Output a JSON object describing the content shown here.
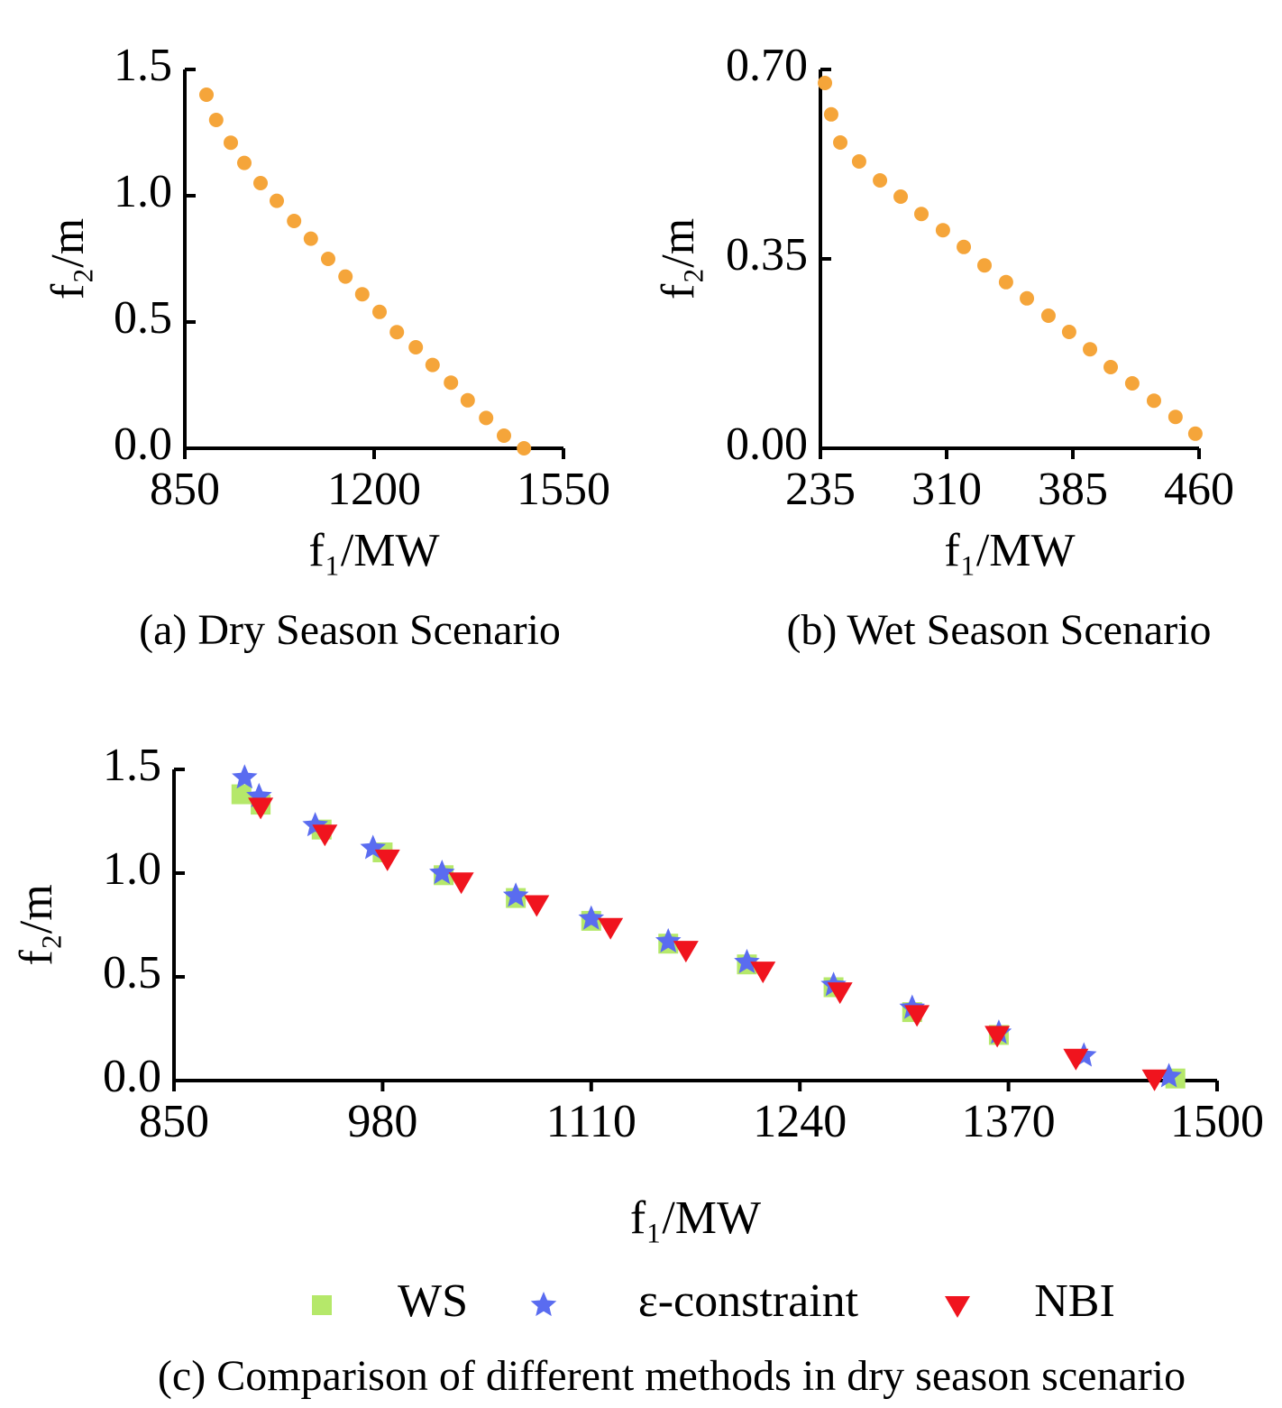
{
  "chart_data": [
    {
      "type": "scatter",
      "caption": "(a) Dry Season Scenario",
      "xlabel": "f₁/MW",
      "ylabel": "f₂/m",
      "xlim": [
        850,
        1550
      ],
      "xticks": [
        850,
        1200,
        1550
      ],
      "ylim": [
        0,
        1.5
      ],
      "yticks": [
        {
          "value": 0,
          "label": "0.0"
        },
        0.5,
        {
          "value": 1,
          "label": "1.0"
        },
        1.5
      ],
      "series": [
        {
          "color": "#f5a53a",
          "marker": "circle",
          "x": [
            890,
            908,
            935,
            960,
            990,
            1020,
            1052,
            1083,
            1115,
            1147,
            1178,
            1210,
            1242,
            1277,
            1308,
            1342,
            1373,
            1407,
            1440,
            1477
          ],
          "values": [
            1.4,
            1.3,
            1.21,
            1.13,
            1.05,
            0.98,
            0.9,
            0.83,
            0.75,
            0.68,
            0.61,
            0.54,
            0.46,
            0.4,
            0.33,
            0.26,
            0.19,
            0.12,
            0.05,
            0.0
          ]
        }
      ]
    },
    {
      "type": "scatter",
      "caption": "(b) Wet Season Scenario",
      "xlabel": "f₁/MW",
      "ylabel": "f₂/m",
      "xlim": [
        235,
        460
      ],
      "xticks": [
        235,
        310,
        385,
        460
      ],
      "ylim": [
        0,
        0.7
      ],
      "yticks": [
        {
          "value": 0,
          "label": "0.00"
        },
        0.35,
        {
          "value": 0.7,
          "label": "0.70"
        }
      ],
      "series": [
        {
          "color": "#f5a53a",
          "marker": "circle",
          "x": [
            237.7,
            241.4,
            246.8,
            258.0,
            270.4,
            282.7,
            295.0,
            307.8,
            320.2,
            332.5,
            345.3,
            357.7,
            370.5,
            382.8,
            395.2,
            407.5,
            420.3,
            433.2,
            446.0,
            457.8
          ],
          "values": [
            0.675,
            0.617,
            0.565,
            0.53,
            0.495,
            0.465,
            0.433,
            0.403,
            0.372,
            0.338,
            0.307,
            0.277,
            0.245,
            0.215,
            0.183,
            0.15,
            0.12,
            0.088,
            0.058,
            0.027
          ]
        }
      ]
    },
    {
      "type": "scatter",
      "caption": "(c) Comparison of different methods in dry season scenario",
      "xlabel": "f₁/MW",
      "ylabel": "f₂/m",
      "xlim": [
        850,
        1500
      ],
      "xticks": [
        850,
        980,
        1110,
        1240,
        1370,
        1500
      ],
      "ylim": [
        0,
        1.5
      ],
      "yticks": [
        {
          "value": 0,
          "label": "0.0"
        },
        0.5,
        {
          "value": 1,
          "label": "1.0"
        },
        1.5
      ],
      "series": [
        {
          "name": "WS",
          "color": "#b5e86a",
          "marker": "square",
          "x": [
            892,
            904,
            942,
            980,
            1018,
            1063,
            1110,
            1158,
            1207,
            1261,
            1310,
            1364,
            1474
          ],
          "values": [
            1.38,
            1.33,
            1.21,
            1.1,
            0.99,
            0.88,
            0.77,
            0.66,
            0.56,
            0.45,
            0.33,
            0.22,
            0.01
          ]
        },
        {
          "name": "ε-constraint",
          "color": "#5a6cf0",
          "marker": "star",
          "x": [
            894,
            903,
            938,
            974,
            1017,
            1063,
            1110,
            1158,
            1207,
            1261,
            1310,
            1364,
            1417,
            1470
          ],
          "values": [
            1.46,
            1.37,
            1.23,
            1.12,
            1.0,
            0.89,
            0.78,
            0.67,
            0.57,
            0.46,
            0.35,
            0.23,
            0.12,
            0.02
          ]
        },
        {
          "name": "NBI",
          "color": "#f0141e",
          "marker": "triangle-down",
          "x": [
            904,
            944,
            983,
            1029,
            1076,
            1122,
            1169,
            1217,
            1265,
            1313,
            1363,
            1412,
            1461
          ],
          "values": [
            1.32,
            1.19,
            1.07,
            0.96,
            0.85,
            0.74,
            0.63,
            0.53,
            0.43,
            0.32,
            0.22,
            0.11,
            0.01
          ]
        }
      ]
    }
  ]
}
